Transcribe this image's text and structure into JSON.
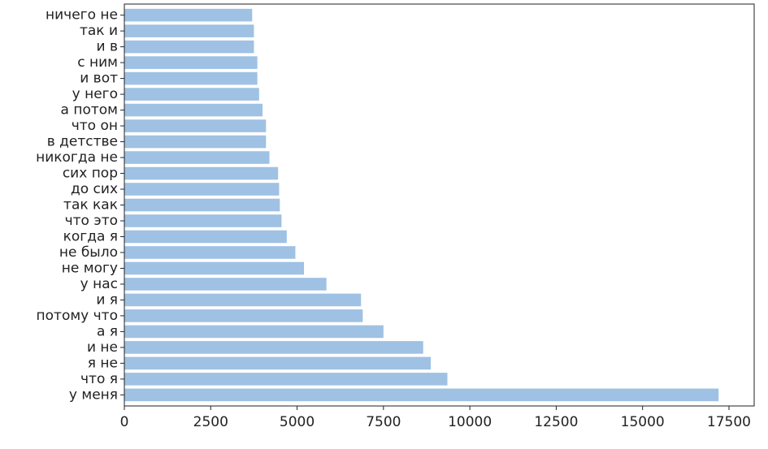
{
  "chart_data": {
    "type": "barh",
    "categories": [
      "у меня",
      "что я",
      "я не",
      "и не",
      "а я",
      "потому что",
      "и я",
      "у нас",
      "не могу",
      "не было",
      "когда я",
      "что это",
      "так как",
      "до сих",
      "сих пор",
      "никогда не",
      "в детстве",
      "что он",
      "а потом",
      "у него",
      "и вот",
      "с ним",
      "и в",
      "так и",
      "ничего не"
    ],
    "values": [
      17200,
      9350,
      8870,
      8650,
      7500,
      6900,
      6850,
      5850,
      5200,
      4950,
      4700,
      4550,
      4500,
      4480,
      4450,
      4200,
      4100,
      4100,
      4000,
      3900,
      3850,
      3850,
      3750,
      3750,
      3700
    ],
    "color": "#9fc1e3",
    "xlim": [
      0,
      18230
    ],
    "xticks": [
      0,
      2500,
      5000,
      7500,
      10000,
      12500,
      15000,
      17500
    ]
  }
}
